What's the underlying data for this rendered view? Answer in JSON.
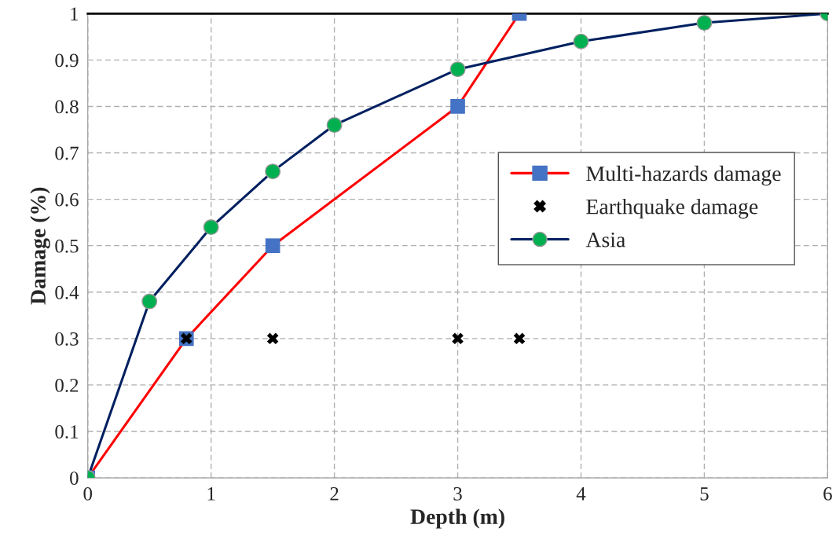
{
  "chart_data": {
    "type": "line",
    "xlabel": "Depth (m)",
    "ylabel": "Damage (%)",
    "xlim": [
      0,
      6
    ],
    "xticks": [
      0,
      1,
      2,
      3,
      4,
      5,
      6
    ],
    "ylim": [
      0,
      1
    ],
    "yticks": [
      0,
      0.1,
      0.2,
      0.3,
      0.4,
      0.5,
      0.6,
      0.7,
      0.8,
      0.9,
      1
    ],
    "grid": true,
    "legend": "right",
    "series": [
      {
        "name": "Multi-hazards damage",
        "color": "#ff0000",
        "colors": [
          "#4472c4",
          "#4472c4",
          "#4472c4",
          "#4472c4",
          "#4472c4"
        ],
        "marker": "square",
        "x": [
          0,
          0.8,
          1.5,
          3,
          3.5
        ],
        "values": [
          0,
          0.3,
          0.5,
          0.8,
          1.0
        ]
      },
      {
        "name": "Earthquake damage",
        "type": "scatter",
        "color": "#000000",
        "marker": "cross",
        "x": [
          0.8,
          1.5,
          3,
          3.5
        ],
        "values": [
          0.3,
          0.3,
          0.3,
          0.3
        ]
      },
      {
        "name": "Asia",
        "color": "#002060",
        "colors": [
          "#00b050",
          "#00b050",
          "#00b050",
          "#00b050",
          "#00b050",
          "#00b050",
          "#00b050",
          "#00b050",
          "#00b050"
        ],
        "marker": "circle",
        "x": [
          0,
          0.5,
          1,
          1.5,
          2,
          3,
          4,
          5,
          6
        ],
        "values": [
          0,
          0.38,
          0.54,
          0.66,
          0.76,
          0.88,
          0.94,
          0.98,
          1.0
        ]
      }
    ]
  }
}
